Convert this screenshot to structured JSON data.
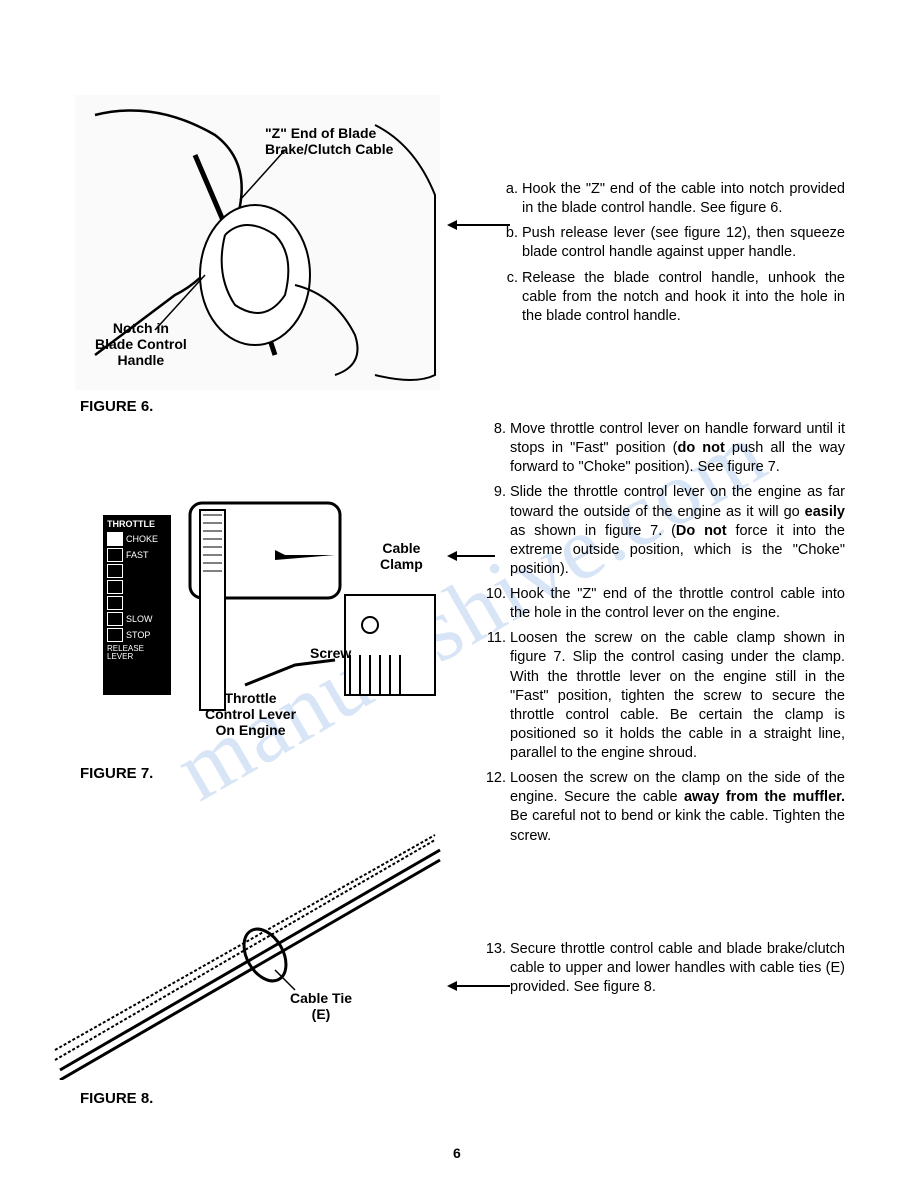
{
  "page_number": "6",
  "watermark_text": "manualshive.com",
  "figure6": {
    "caption": "FIGURE 6.",
    "label_z_end": "\"Z\" End of Blade\nBrake/Clutch Cable",
    "label_notch": "Notch in\nBlade Control\nHandle",
    "alt": "[Illustration: hands holding blade control handle with cable; labels point to notch and Z-end of cable]"
  },
  "figure7": {
    "caption": "FIGURE 7.",
    "label_cable_clamp": "Cable\nClamp",
    "label_screw": "Screw",
    "label_throttle_lever": "Throttle\nControl Lever\nOn Engine",
    "throttle_panel": {
      "title": "THROTTLE",
      "choke": "CHOKE",
      "fast": "FAST",
      "slow": "SLOW",
      "stop": "STOP",
      "release": "RELEASE\nLEVER"
    },
    "alt": "[Illustration: engine throttle area showing cable clamp, screw, throttle control lever and throttle position decal]"
  },
  "figure8": {
    "caption": "FIGURE 8.",
    "label_cable_tie": "Cable Tie\n(E)",
    "alt": "[Illustration: handle tubes with cable tie (E) securing cables]"
  },
  "instructions_abc": {
    "a": "Hook the \"Z\" end of the cable into notch provided in the blade control handle. See figure 6.",
    "b": "Push release lever (see figure 12), then squeeze blade control handle against upper handle.",
    "c": "Release the blade control handle, unhook the cable from the notch and hook it into the hole in the blade control handle."
  },
  "instructions_num": {
    "8": "Move throttle control lever on handle forward until it stops in \"Fast\" position (do not push all the way forward to \"Choke\" position). See figure 7.",
    "9_pre": "Slide the throttle control lever on the engine as far toward the outside of the engine as it will go ",
    "9_bold1": "easily",
    "9_mid": " as shown in figure 7. (",
    "9_bold2": "Do not",
    "9_post": " force it into the extreme outside position, which is the \"Choke\" position).",
    "10": "Hook the \"Z\" end of the throttle control cable into the hole in the control lever on the engine.",
    "11": "Loosen the screw on the cable clamp shown in figure 7. Slip the control casing under the clamp. With the throttle lever on the engine still in the \"Fast\" position, tighten the screw to secure the throttle control cable. Be certain the clamp is positioned so it holds the cable in a straight line, parallel to the engine shroud.",
    "12_pre": "Loosen the screw on the clamp on the side of the engine. Secure the cable ",
    "12_bold": "away from the muffler.",
    "12_post": " Be careful not to bend or kink the cable. Tighten the screw.",
    "13": "Secure throttle control cable and blade brake/clutch cable to upper and lower handles with cable ties (E) provided. See figure 8."
  },
  "bold_do_not": "do not"
}
